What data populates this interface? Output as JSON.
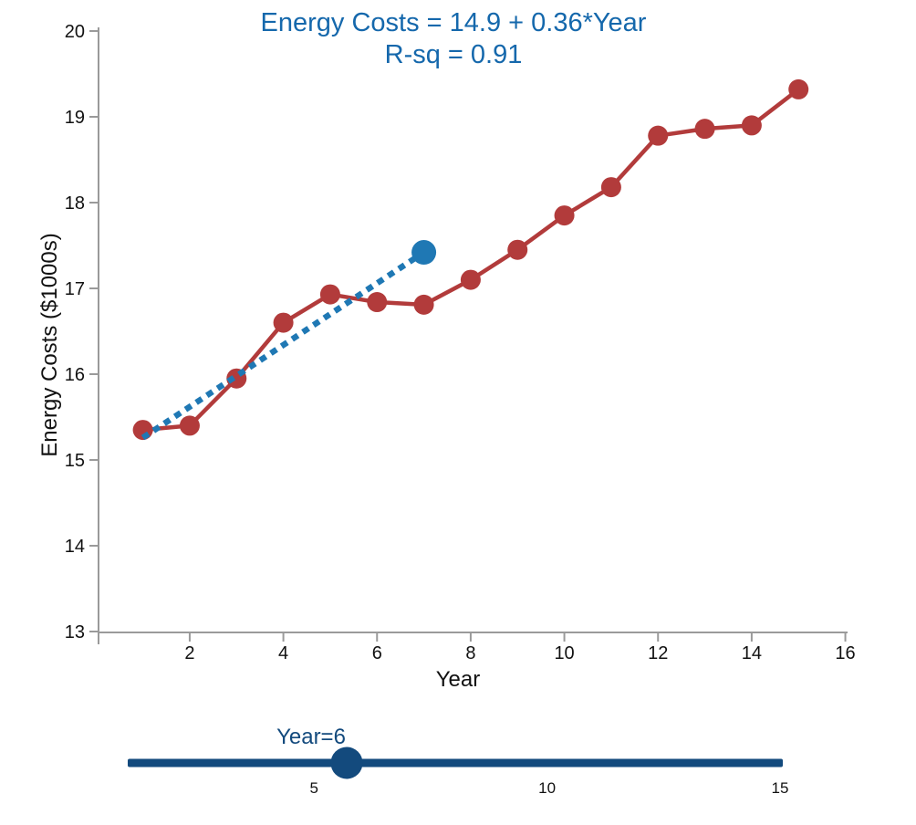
{
  "title": {
    "line1": "Energy Costs = 14.9 + 0.36*Year",
    "line2": "R-sq = 0.91"
  },
  "chart_data": {
    "type": "line",
    "title": "Energy Costs = 14.9 + 0.36*Year",
    "subtitle": "R-sq = 0.91",
    "xlabel": "Year",
    "ylabel": "Energy Costs ($1000s)",
    "xlim": [
      1,
      16
    ],
    "ylim": [
      13,
      20
    ],
    "x_ticks": [
      2,
      4,
      6,
      8,
      10,
      12,
      14,
      16
    ],
    "y_ticks": [
      13,
      14,
      15,
      16,
      17,
      18,
      19,
      20
    ],
    "grid": false,
    "legend": "none",
    "series": [
      {
        "name": "observed-energy-costs",
        "style": "solid-line-with-markers",
        "color": "#b23b3b",
        "x": [
          1,
          2,
          3,
          4,
          5,
          6,
          7,
          8,
          9,
          10,
          11,
          12,
          13,
          14,
          15
        ],
        "values": [
          15.35,
          15.4,
          15.95,
          16.6,
          16.93,
          16.84,
          16.81,
          17.1,
          17.45,
          17.85,
          18.18,
          18.78,
          18.86,
          18.9,
          19.32
        ]
      },
      {
        "name": "regression-fit",
        "style": "dashed-line",
        "color": "#1f78b4",
        "x": [
          1,
          7
        ],
        "values": [
          15.26,
          17.42
        ],
        "endpoint_marker": {
          "x": 7,
          "y": 17.42
        }
      }
    ],
    "fit": {
      "intercept": 14.9,
      "slope": 0.36,
      "r_sq": 0.91
    }
  },
  "slider": {
    "label": "Year=6",
    "value": 6,
    "tick_labels": [
      "5",
      "10",
      "15"
    ],
    "tick_values": [
      5,
      10,
      15
    ]
  },
  "colors": {
    "observed": "#b23b3b",
    "fit": "#1f78b4",
    "slider": "#134a7d",
    "title": "#1568ac",
    "axis": "#9a9a9a",
    "text": "#111111"
  }
}
